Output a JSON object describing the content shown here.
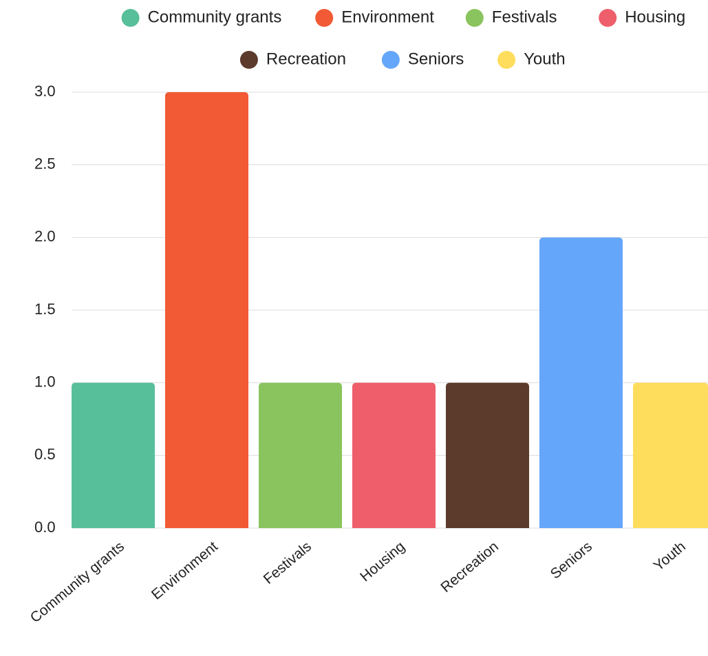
{
  "chart_data": {
    "type": "bar",
    "title": "",
    "xlabel": "",
    "ylabel": "",
    "categories": [
      "Community grants",
      "Environment",
      "Festivals",
      "Housing",
      "Recreation",
      "Seniors",
      "Youth"
    ],
    "values": [
      1,
      3,
      1,
      1,
      1,
      2,
      1
    ],
    "colors": [
      "#57BF99",
      "#F15A35",
      "#8AC45E",
      "#EE5E6B",
      "#5C3B2C",
      "#64A6FA",
      "#FFDD5C"
    ],
    "ylim": [
      0,
      3
    ],
    "yticks": [
      "0.0",
      "0.5",
      "1.0",
      "1.5",
      "2.0",
      "2.5",
      "3.0"
    ],
    "grid": true,
    "legend_position": "top-center",
    "legend_rows": [
      [
        "Community grants",
        "Environment",
        "Festivals",
        "Housing"
      ],
      [
        "Recreation",
        "Seniors",
        "Youth"
      ]
    ]
  }
}
